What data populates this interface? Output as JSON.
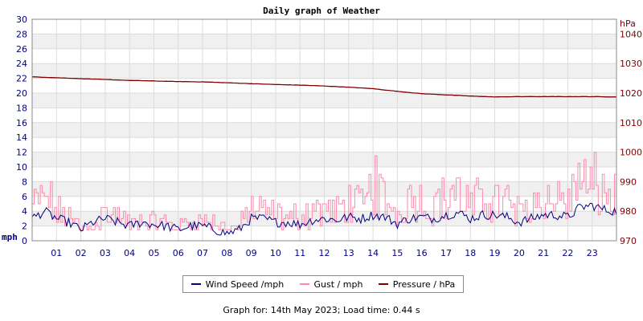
{
  "chart_data": {
    "type": "line",
    "title": "Daily graph of Weather",
    "x": {
      "categories": [
        "01",
        "02",
        "03",
        "04",
        "05",
        "06",
        "07",
        "08",
        "09",
        "10",
        "11",
        "12",
        "13",
        "14",
        "15",
        "16",
        "17",
        "18",
        "19",
        "20",
        "21",
        "22",
        "23"
      ],
      "range_hours": [
        0,
        24
      ]
    },
    "y_left": {
      "label": "mph",
      "range": [
        0,
        30
      ],
      "ticks": [
        "0",
        "2",
        "4",
        "6",
        "8",
        "10",
        "12",
        "14",
        "16",
        "18",
        "20",
        "22",
        "24",
        "26",
        "28",
        "30"
      ]
    },
    "y_right": {
      "label": "hPa",
      "range": [
        970,
        1045
      ],
      "ticks": [
        "970",
        "980",
        "990",
        "1000",
        "1010",
        "1020",
        "1030",
        "1040"
      ]
    },
    "grid": true,
    "legend_position": "bottom",
    "series": [
      {
        "name": "Wind Speed /mph",
        "color": "#000080",
        "axis": "left",
        "hours": [
          0,
          0.5,
          1,
          1.5,
          2,
          2.5,
          3,
          3.5,
          4,
          4.5,
          5,
          5.5,
          6,
          6.5,
          7,
          7.5,
          8,
          8.5,
          9,
          9.5,
          10,
          10.5,
          11,
          11.5,
          12,
          12.5,
          13,
          13.5,
          14,
          14.5,
          15,
          15.5,
          16,
          16.5,
          17,
          17.5,
          18,
          18.5,
          19,
          19.5,
          20,
          20.5,
          21,
          21.5,
          22,
          22.5,
          23,
          23.5,
          24
        ],
        "values": [
          3,
          4,
          3,
          2.5,
          1.5,
          2.5,
          3,
          2.5,
          2,
          2.5,
          2.2,
          2,
          1.5,
          2,
          2,
          1.5,
          1,
          1.5,
          3,
          3,
          2.5,
          2.5,
          2.2,
          2.8,
          3,
          2.8,
          3.2,
          3,
          3.5,
          3.2,
          2.3,
          3,
          3.2,
          3,
          3.5,
          3.8,
          3,
          3.5,
          3.5,
          3.2,
          2.5,
          3,
          3.5,
          3.5,
          3.2,
          4.5,
          4.8,
          4.2,
          4
        ]
      },
      {
        "name": "Gust / mph",
        "color": "#ff88aa",
        "axis": "left",
        "hours": [
          0,
          0.5,
          1,
          1.5,
          2,
          2.5,
          3,
          3.5,
          4,
          4.5,
          5,
          5.5,
          6,
          6.5,
          7,
          7.5,
          8,
          8.5,
          9,
          9.5,
          10,
          10.5,
          11,
          11.5,
          12,
          12.5,
          13,
          13.5,
          14,
          14.5,
          15,
          15.5,
          16,
          16.5,
          17,
          17.5,
          18,
          18.5,
          19,
          19.5,
          20,
          20.5,
          21,
          21.5,
          22,
          22.5,
          23,
          23.5,
          24
        ],
        "values": [
          6,
          8,
          5,
          4,
          2,
          3.5,
          4.5,
          4,
          3,
          3.5,
          3.5,
          3,
          2.5,
          3,
          3.5,
          3,
          2,
          2.5,
          6,
          5,
          4.5,
          4,
          4,
          5,
          5.5,
          5,
          6.5,
          6,
          9,
          7.5,
          4.5,
          7,
          6.5,
          6,
          7.5,
          8,
          6,
          7.5,
          7,
          7,
          5,
          6,
          7,
          7.5,
          6.5,
          9,
          10,
          8,
          7.5
        ],
        "peaks": [
          {
            "hour": 14.1,
            "value": 11.5
          },
          {
            "hour": 22.4,
            "value": 10.5
          }
        ]
      },
      {
        "name": "Pressure / hPa",
        "color": "#800000",
        "axis": "right",
        "hours": [
          0,
          1,
          2,
          3,
          4,
          5,
          6,
          7,
          8,
          9,
          10,
          11,
          12,
          13,
          14,
          15,
          16,
          17,
          18,
          19,
          20,
          21,
          22,
          23,
          24
        ],
        "values": [
          1025.5,
          1025.2,
          1024.9,
          1024.6,
          1024.3,
          1024.1,
          1023.9,
          1023.8,
          1023.5,
          1023.2,
          1022.9,
          1022.7,
          1022.4,
          1022.0,
          1021.5,
          1020.6,
          1019.8,
          1019.4,
          1019.0,
          1018.7,
          1018.8,
          1018.8,
          1018.8,
          1018.8,
          1018.7
        ]
      }
    ]
  },
  "footer": {
    "text": "Graph for: 14th May 2023; Load time: 0.44 s"
  }
}
